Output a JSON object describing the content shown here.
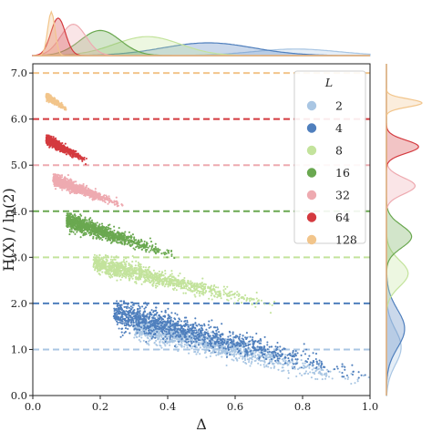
{
  "chart_data": {
    "type": "scatter",
    "xlabel": "Δ",
    "ylabel": "H(X) / ln(2)",
    "xlim": [
      0.0,
      1.0
    ],
    "ylim": [
      0.0,
      7.2
    ],
    "x_ticks": [
      "0.0",
      "0.2",
      "0.4",
      "0.6",
      "0.8",
      "1.0"
    ],
    "y_ticks": [
      "0.0",
      "1.0",
      "2.0",
      "3.0",
      "4.0",
      "5.0",
      "6.0",
      "7.0"
    ],
    "legend": {
      "title": "L",
      "position": "top-right"
    },
    "marginals": {
      "top": "density of Δ per L",
      "right": "density of H(X)/ln(2) per L"
    },
    "series": [
      {
        "name": "2",
        "color": "#a9c6e3",
        "reference_line": 1.0,
        "x_range": [
          0.3,
          1.0
        ],
        "y_range": [
          0.0,
          1.75
        ],
        "mode_x": 0.78,
        "mode_y": 1.05
      },
      {
        "name": "4",
        "color": "#4f7fbd",
        "reference_line": 2.0,
        "x_range": [
          0.24,
          0.99
        ],
        "y_range": [
          0.15,
          2.05
        ],
        "mode_x": 0.52,
        "mode_y": 1.45
      },
      {
        "name": "8",
        "color": "#c3e39c",
        "reference_line": 3.0,
        "x_range": [
          0.18,
          0.72
        ],
        "y_range": [
          1.75,
          3.05
        ],
        "mode_x": 0.34,
        "mode_y": 2.65
      },
      {
        "name": "16",
        "color": "#6aa850",
        "reference_line": 4.0,
        "x_range": [
          0.1,
          0.43
        ],
        "y_range": [
          2.85,
          3.95
        ],
        "mode_x": 0.2,
        "mode_y": 3.45
      },
      {
        "name": "32",
        "color": "#eeaab0",
        "reference_line": 5.0,
        "x_range": [
          0.06,
          0.27
        ],
        "y_range": [
          4.0,
          4.8
        ],
        "mode_x": 0.12,
        "mode_y": 4.55
      },
      {
        "name": "64",
        "color": "#d43a3f",
        "reference_line": 6.0,
        "x_range": [
          0.04,
          0.16
        ],
        "y_range": [
          5.0,
          5.65
        ],
        "mode_x": 0.075,
        "mode_y": 5.4
      },
      {
        "name": "128",
        "color": "#f2c58b",
        "reference_line": 7.0,
        "x_range": [
          0.04,
          0.1
        ],
        "y_range": [
          6.15,
          6.55
        ],
        "mode_x": 0.055,
        "mode_y": 6.35
      }
    ]
  }
}
